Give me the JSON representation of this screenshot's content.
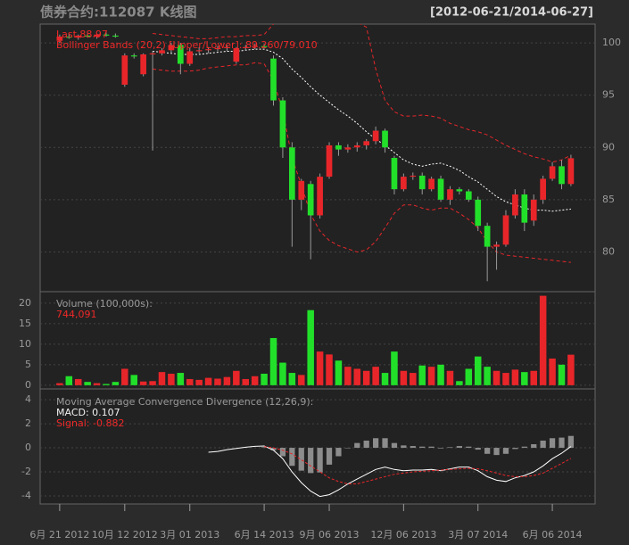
{
  "chart_data": [
    {
      "type": "candlestick",
      "title": "债券合约:112087 K线图",
      "subtitle": "[2012-06-21/2014-06-27]",
      "annotations": [
        "Last 88.97",
        "Bollinger Bands (20,2) [Upper/Lower]: 89.260/79.010"
      ],
      "up_color": "#e8262a",
      "down_color": "#22e02a",
      "band_color": "#e8262a",
      "middle_color": "#ffffff",
      "ylim": [
        76.2,
        101.8
      ],
      "yticks": [
        80,
        85,
        90,
        95,
        100
      ],
      "grid": true,
      "open": [
        100.2,
        100.6,
        100.5,
        100.7,
        100.6,
        100.8,
        100.7,
        96.0,
        98.8,
        97.0,
        98.9,
        99.0,
        99.3,
        99.8,
        98.0,
        99.2,
        99.3,
        99.4,
        99.5,
        98.2,
        99.5,
        99.6,
        99.7,
        98.5,
        94.5,
        90.0,
        85.0,
        86.5,
        83.5,
        87.2,
        90.2,
        89.8,
        90.0,
        90.2,
        90.6,
        91.6,
        89.0,
        86.0,
        87.2,
        87.3,
        86.0,
        87.0,
        85.0,
        86.0,
        85.8,
        85.0,
        82.5,
        80.5,
        80.7,
        83.5,
        85.5,
        83.0,
        85.0,
        87.0,
        88.2,
        86.5
      ],
      "high": [
        100.8,
        100.9,
        100.8,
        100.9,
        100.9,
        101.0,
        100.9,
        99.0,
        99.0,
        99.0,
        99.2,
        99.5,
        100.0,
        100.0,
        99.5,
        99.6,
        99.6,
        99.7,
        99.8,
        99.6,
        99.8,
        99.9,
        99.9,
        98.8,
        94.8,
        90.5,
        87.0,
        86.8,
        87.5,
        90.5,
        90.5,
        90.3,
        90.5,
        90.8,
        92.0,
        91.8,
        89.2,
        87.5,
        87.6,
        87.6,
        87.2,
        87.3,
        86.3,
        86.2,
        86.0,
        85.3,
        82.8,
        81.0,
        84.0,
        86.0,
        86.0,
        85.5,
        87.3,
        88.6,
        88.8,
        89.3
      ],
      "low": [
        100.0,
        100.4,
        100.3,
        100.5,
        100.4,
        100.6,
        100.5,
        95.8,
        98.5,
        96.8,
        89.7,
        98.8,
        99.0,
        97.0,
        97.8,
        99.0,
        99.0,
        99.2,
        99.2,
        98.0,
        99.3,
        99.4,
        99.5,
        94.0,
        89.0,
        80.5,
        84.0,
        79.3,
        83.2,
        87.0,
        89.2,
        89.5,
        89.6,
        89.8,
        90.3,
        89.5,
        85.5,
        85.8,
        86.9,
        85.5,
        85.8,
        84.8,
        84.5,
        85.5,
        84.8,
        82.0,
        77.2,
        78.3,
        80.5,
        83.2,
        82.0,
        82.5,
        84.6,
        86.8,
        86.0,
        86.3
      ],
      "close": [
        100.6,
        100.5,
        100.7,
        100.6,
        100.8,
        100.7,
        100.6,
        98.8,
        98.7,
        98.9,
        99.0,
        99.3,
        99.8,
        98.0,
        99.2,
        99.3,
        99.4,
        99.5,
        99.6,
        99.5,
        99.6,
        99.7,
        99.6,
        94.5,
        90.0,
        85.0,
        86.8,
        83.5,
        87.2,
        90.2,
        89.8,
        90.0,
        90.2,
        90.6,
        91.6,
        90.0,
        86.0,
        87.2,
        87.3,
        86.0,
        87.0,
        85.0,
        86.0,
        85.8,
        85.0,
        82.5,
        80.5,
        80.7,
        83.5,
        85.5,
        82.8,
        85.0,
        87.0,
        88.2,
        86.5,
        88.97
      ],
      "bollinger": {
        "upper": [
          null,
          null,
          null,
          null,
          null,
          null,
          null,
          null,
          null,
          null,
          100.9,
          100.8,
          100.7,
          100.6,
          100.5,
          100.4,
          100.4,
          100.5,
          100.6,
          100.6,
          100.7,
          100.7,
          100.8,
          101.8,
          103.5,
          106,
          107,
          108,
          108,
          107.5,
          106,
          104,
          102,
          101.5,
          97.5,
          94.5,
          93.4,
          93.0,
          93.0,
          93.1,
          93.0,
          92.8,
          92.3,
          92.0,
          91.7,
          91.5,
          91.2,
          90.7,
          90.2,
          89.8,
          89.4,
          89.1,
          88.9,
          88.6,
          88.8,
          89.26
        ],
        "middle": [
          null,
          null,
          null,
          null,
          null,
          null,
          null,
          null,
          null,
          null,
          99.2,
          99.1,
          99.0,
          98.9,
          98.9,
          98.9,
          99.0,
          99.1,
          99.2,
          99.2,
          99.3,
          99.4,
          99.4,
          99.1,
          98.5,
          97.5,
          96.7,
          95.8,
          95.0,
          94.3,
          93.6,
          93.0,
          92.3,
          91.5,
          90.8,
          90.2,
          89.5,
          88.8,
          88.4,
          88.2,
          88.4,
          88.5,
          88.2,
          87.8,
          87.2,
          86.7,
          86.0,
          85.3,
          84.8,
          84.5,
          84.2,
          84.0,
          84.0,
          83.9,
          84.0,
          84.1
        ],
        "lower": [
          null,
          null,
          null,
          null,
          null,
          null,
          null,
          null,
          null,
          null,
          97.5,
          97.4,
          97.3,
          97.3,
          97.3,
          97.4,
          97.6,
          97.7,
          97.8,
          97.9,
          97.9,
          98.1,
          98.0,
          96.4,
          93.5,
          89,
          86.4,
          83.6,
          82.0,
          81.1,
          80.6,
          80.3,
          80.0,
          80.2,
          81.0,
          82.3,
          83.7,
          84.5,
          84.5,
          84.2,
          84.0,
          84.2,
          84.2,
          83.7,
          83.1,
          82.3,
          81.0,
          80.0,
          79.7,
          79.6,
          79.5,
          79.4,
          79.3,
          79.2,
          79.1,
          79.01
        ]
      }
    },
    {
      "type": "bar",
      "title": "Volume (100,000s):",
      "annotations": [
        "744,091"
      ],
      "ylim": [
        -0.9,
        22.8
      ],
      "yticks": [
        0,
        5,
        10,
        15,
        20
      ],
      "grid": true,
      "values": [
        0.5,
        2.2,
        1.5,
        0.8,
        0.5,
        0.3,
        0.8,
        4,
        2.5,
        0.9,
        1.0,
        3.2,
        2.8,
        3.0,
        1.5,
        1.3,
        1.8,
        1.6,
        2.0,
        3.5,
        1.5,
        2.2,
        2.8,
        11.5,
        5.5,
        3.0,
        2.5,
        18.3,
        8.2,
        7.5,
        6.0,
        4.5,
        4.0,
        3.5,
        4.5,
        3.0,
        8.2,
        3.5,
        3.0,
        4.8,
        4.5,
        5.0,
        3.5,
        1.0,
        4.0,
        7.0,
        4.5,
        3.5,
        3.0,
        3.8,
        3.2,
        3.5,
        21.8,
        6.5,
        5.0,
        7.44
      ]
    },
    {
      "type": "line",
      "title": "Moving Average Convergence Divergence (12,26,9):",
      "annotations": [
        "MACD: 0.107",
        "Signal: -0.882"
      ],
      "ylim": [
        -4.67,
        4.9
      ],
      "yticks": [
        -4,
        -2,
        0,
        2,
        4
      ],
      "grid": true,
      "xlim": [
        -2.1,
        57.6
      ],
      "xticks": [
        {
          "value": 0,
          "label": "6月 21 2012"
        },
        {
          "value": 7,
          "label": "10月 12 2012"
        },
        {
          "value": 14,
          "label": "3月 01 2013"
        },
        {
          "value": 22,
          "label": "6月 14 2013"
        },
        {
          "value": 29,
          "label": "9月 06 2013"
        },
        {
          "value": 37,
          "label": "12月 06 2013"
        },
        {
          "value": 45,
          "label": "3月 07 2014"
        },
        {
          "value": 53,
          "label": "6月 06 2014"
        }
      ],
      "series": [
        {
          "color": "#ffffff",
          "values": [
            null,
            null,
            null,
            null,
            null,
            null,
            null,
            null,
            null,
            null,
            null,
            null,
            null,
            null,
            null,
            null,
            -0.37,
            -0.3,
            -0.15,
            -0.05,
            0.05,
            0.12,
            0.15,
            -0.2,
            -0.9,
            -2.0,
            -2.9,
            -3.6,
            -4.05,
            -3.9,
            -3.5,
            -3.0,
            -2.6,
            -2.2,
            -1.8,
            -1.6,
            -1.8,
            -1.9,
            -1.85,
            -1.85,
            -1.8,
            -1.9,
            -1.75,
            -1.6,
            -1.6,
            -1.9,
            -2.4,
            -2.7,
            -2.8,
            -2.5,
            -2.3,
            -2.0,
            -1.5,
            -0.9,
            -0.45,
            0.107
          ]
        },
        {
          "color": "#e8262a",
          "dashed": true,
          "values": [
            null,
            null,
            null,
            null,
            null,
            null,
            null,
            null,
            null,
            null,
            null,
            null,
            null,
            null,
            null,
            null,
            null,
            null,
            null,
            null,
            null,
            null,
            0.1,
            0.0,
            -0.2,
            -0.5,
            -1.0,
            -1.5,
            -2.0,
            -2.5,
            -2.8,
            -3.0,
            -3.0,
            -2.8,
            -2.6,
            -2.4,
            -2.2,
            -2.1,
            -2.0,
            -1.95,
            -1.9,
            -1.85,
            -1.8,
            -1.75,
            -1.7,
            -1.75,
            -1.9,
            -2.1,
            -2.3,
            -2.4,
            -2.4,
            -2.3,
            -2.1,
            -1.7,
            -1.3,
            -0.882
          ]
        }
      ],
      "histogram_color": "#8c8c8c",
      "histogram": [
        null,
        null,
        null,
        null,
        null,
        null,
        null,
        null,
        null,
        null,
        null,
        null,
        null,
        null,
        null,
        null,
        null,
        null,
        null,
        null,
        null,
        null,
        0.05,
        -0.2,
        -0.7,
        -1.5,
        -1.9,
        -2.1,
        -2.05,
        -1.4,
        -0.7,
        0.0,
        0.4,
        0.6,
        0.8,
        0.8,
        0.4,
        0.2,
        0.15,
        0.1,
        0.1,
        -0.05,
        0.05,
        0.15,
        0.1,
        -0.15,
        -0.5,
        -0.6,
        -0.5,
        -0.1,
        0.1,
        0.3,
        0.6,
        0.8,
        0.85,
        0.99
      ]
    }
  ]
}
